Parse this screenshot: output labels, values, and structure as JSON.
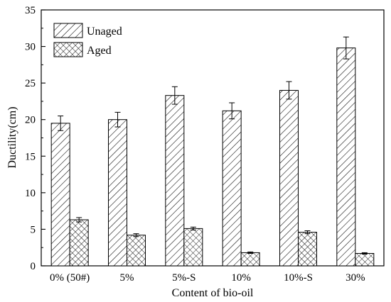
{
  "chart_data": {
    "type": "bar",
    "xlabel": "Content of bio-oil",
    "ylabel": "Ductility(cm)",
    "ylim": [
      0,
      35
    ],
    "yticks": [
      0,
      5,
      10,
      15,
      20,
      25,
      30,
      35
    ],
    "categories": [
      "0% (50#)",
      "5%",
      "5%-S",
      "10%",
      "10%-S",
      "30%"
    ],
    "series": [
      {
        "name": "Unaged",
        "pattern": "diagonal-hatch",
        "values": [
          19.5,
          20.0,
          23.3,
          21.2,
          24.0,
          29.8
        ],
        "errors": [
          1.0,
          1.0,
          1.2,
          1.1,
          1.2,
          1.5
        ]
      },
      {
        "name": "Aged",
        "pattern": "cross-hatch",
        "values": [
          6.3,
          4.2,
          5.1,
          1.8,
          4.6,
          1.7
        ],
        "errors": [
          0.3,
          0.2,
          0.2,
          0.1,
          0.2,
          0.1
        ]
      }
    ],
    "legend_position": "top-left",
    "grid": false,
    "colors": {
      "bar_stroke": "#000000",
      "bar_fill": "#ffffff",
      "hatch": "#000000"
    }
  }
}
